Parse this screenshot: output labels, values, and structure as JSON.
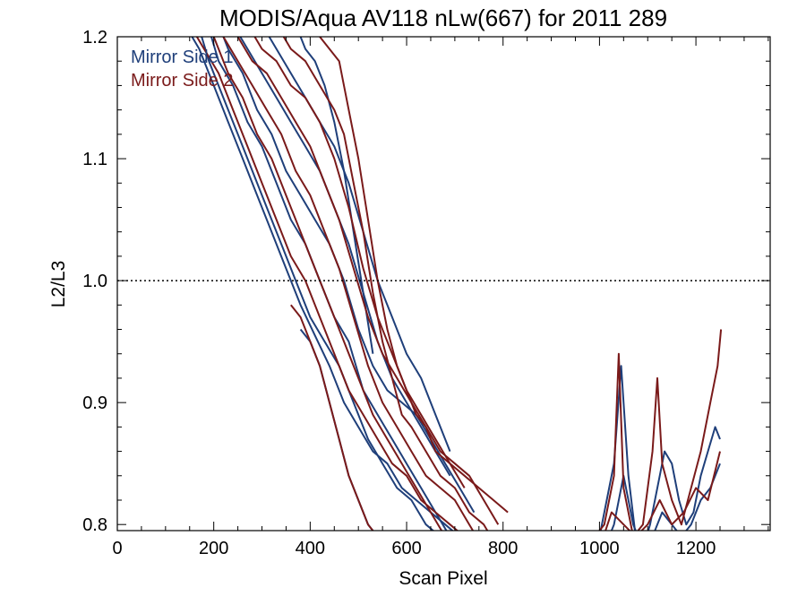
{
  "chart_data": {
    "type": "line",
    "title": "MODIS/Aqua AV118 nLw(667) for 2011 289",
    "xlabel": "Scan Pixel",
    "ylabel": "L2/L3",
    "xlim": [
      0,
      1354
    ],
    "ylim": [
      0.795,
      1.2
    ],
    "xticks": [
      0,
      200,
      400,
      600,
      800,
      1000,
      1200
    ],
    "xtick_labels": [
      "0",
      "200",
      "400",
      "600",
      "800",
      "1000",
      "1200"
    ],
    "yticks": [
      0.8,
      0.9,
      1.0,
      1.1,
      1.2
    ],
    "ytick_labels": [
      "0.8",
      "0.9",
      "1.0",
      "1.1",
      "1.2"
    ],
    "reference_line": {
      "y": 1.0,
      "style": "dotted"
    },
    "grid": false,
    "legend_position": "top-left",
    "colors": {
      "mirror_side_1": "#1f3f7a",
      "mirror_side_2": "#7a1a1a"
    },
    "series": [
      {
        "name": "Mirror Side 1",
        "color": "#1f3f7a",
        "x": [
          140,
          170,
          200,
          230,
          260,
          290,
          320,
          350,
          380,
          410,
          440,
          470,
          500,
          530,
          560,
          590,
          620,
          650,
          680,
          710,
          740,
          770,
          800,
          830
        ],
        "y": [
          1.21,
          1.19,
          1.16,
          1.13,
          1.1,
          1.07,
          1.04,
          1.01,
          0.98,
          0.955,
          0.93,
          0.9,
          0.88,
          0.86,
          0.85,
          0.83,
          0.82,
          0.81,
          0.8,
          0.79,
          0.78,
          0.77,
          0.76,
          0.75
        ]
      },
      {
        "name": "",
        "color": "#1f3f7a",
        "x": [
          160,
          190,
          220,
          250,
          280,
          310,
          340,
          370,
          400,
          430,
          460,
          490,
          520,
          550,
          580,
          610,
          640,
          670,
          700
        ],
        "y": [
          1.22,
          1.18,
          1.15,
          1.12,
          1.09,
          1.06,
          1.03,
          1.0,
          0.97,
          0.95,
          0.93,
          0.9,
          0.87,
          0.85,
          0.83,
          0.82,
          0.8,
          0.79,
          0.78
        ]
      },
      {
        "name": "",
        "color": "#1f3f7a",
        "x": [
          180,
          210,
          240,
          270,
          300,
          330,
          360,
          390,
          420,
          450,
          480,
          510,
          540,
          570,
          600,
          630,
          660,
          690
        ],
        "y": [
          1.22,
          1.18,
          1.16,
          1.13,
          1.11,
          1.08,
          1.05,
          1.03,
          1.0,
          0.97,
          0.95,
          0.91,
          0.89,
          0.87,
          0.85,
          0.83,
          0.81,
          0.79
        ]
      },
      {
        "name": "",
        "color": "#1f3f7a",
        "x": [
          200,
          230,
          260,
          290,
          320,
          350,
          380,
          410,
          440,
          470,
          500,
          530,
          560,
          590,
          620,
          650,
          680,
          710,
          740
        ],
        "y": [
          1.22,
          1.19,
          1.17,
          1.14,
          1.12,
          1.09,
          1.07,
          1.05,
          1.03,
          1.0,
          0.96,
          0.93,
          0.91,
          0.9,
          0.89,
          0.87,
          0.85,
          0.83,
          0.81
        ]
      },
      {
        "name": "",
        "color": "#1f3f7a",
        "x": [
          240,
          270,
          300,
          330,
          360,
          390,
          420,
          450,
          480,
          510,
          540,
          570,
          600,
          630,
          660,
          690
        ],
        "y": [
          1.21,
          1.19,
          1.17,
          1.15,
          1.13,
          1.11,
          1.09,
          1.06,
          1.03,
          0.99,
          0.95,
          0.92,
          0.9,
          0.88,
          0.86,
          0.84
        ]
      },
      {
        "name": "",
        "color": "#1f3f7a",
        "x": [
          300,
          330,
          360,
          390,
          420,
          450,
          480,
          510,
          540,
          570,
          600,
          630,
          660,
          690
        ],
        "y": [
          1.21,
          1.19,
          1.17,
          1.15,
          1.13,
          1.11,
          1.08,
          1.04,
          1.0,
          0.97,
          0.94,
          0.92,
          0.89,
          0.86
        ]
      },
      {
        "name": "",
        "color": "#1f3f7a",
        "x": [
          370,
          390,
          410,
          430,
          450,
          470,
          490,
          510,
          530
        ],
        "y": [
          1.21,
          1.19,
          1.18,
          1.16,
          1.13,
          1.09,
          1.04,
          0.99,
          0.94
        ]
      },
      {
        "name": "",
        "color": "#1f3f7a",
        "x": [
          380,
          400,
          420,
          440,
          460,
          480,
          500,
          520,
          540,
          560,
          580,
          600
        ],
        "y": [
          0.96,
          0.95,
          0.93,
          0.9,
          0.87,
          0.84,
          0.82,
          0.8,
          0.79,
          0.78,
          0.77,
          0.76
        ]
      },
      {
        "name": "",
        "color": "#1f3f7a",
        "x": [
          1000,
          1015,
          1030,
          1045,
          1060,
          1075,
          1090,
          1105,
          1120,
          1135,
          1150,
          1165,
          1180,
          1195,
          1210,
          1225,
          1240,
          1250
        ],
        "y": [
          0.79,
          0.82,
          0.85,
          0.93,
          0.84,
          0.79,
          0.78,
          0.8,
          0.83,
          0.86,
          0.85,
          0.82,
          0.8,
          0.81,
          0.84,
          0.86,
          0.88,
          0.87
        ]
      },
      {
        "name": "",
        "color": "#1f3f7a",
        "x": [
          1010,
          1030,
          1050,
          1070,
          1090,
          1110,
          1130,
          1150,
          1170,
          1190,
          1210,
          1230,
          1250
        ],
        "y": [
          0.78,
          0.8,
          0.84,
          0.8,
          0.78,
          0.79,
          0.81,
          0.8,
          0.79,
          0.8,
          0.82,
          0.83,
          0.85
        ]
      },
      {
        "name": "Mirror Side 2",
        "color": "#7a1a1a",
        "x": [
          150,
          180,
          210,
          240,
          270,
          300,
          330,
          360,
          390,
          420,
          450,
          480,
          510,
          540,
          570,
          600,
          630,
          660,
          690,
          720,
          750
        ],
        "y": [
          1.21,
          1.19,
          1.17,
          1.14,
          1.11,
          1.08,
          1.05,
          1.02,
          1.0,
          0.97,
          0.94,
          0.91,
          0.89,
          0.87,
          0.85,
          0.84,
          0.82,
          0.81,
          0.8,
          0.79,
          0.78
        ]
      },
      {
        "name": "",
        "color": "#7a1a1a",
        "x": [
          170,
          200,
          230,
          260,
          290,
          320,
          350,
          380,
          410,
          440,
          470,
          500,
          530,
          560,
          590,
          620,
          650,
          680
        ],
        "y": [
          1.22,
          1.2,
          1.17,
          1.15,
          1.12,
          1.1,
          1.07,
          1.04,
          1.01,
          0.98,
          0.95,
          0.92,
          0.89,
          0.87,
          0.85,
          0.83,
          0.81,
          0.79
        ]
      },
      {
        "name": "",
        "color": "#7a1a1a",
        "x": [
          190,
          220,
          250,
          280,
          310,
          340,
          370,
          400,
          430,
          460,
          490,
          520,
          550,
          580,
          610,
          640,
          670,
          700,
          730,
          760
        ],
        "y": [
          1.22,
          1.2,
          1.18,
          1.16,
          1.14,
          1.12,
          1.09,
          1.07,
          1.04,
          1.01,
          0.97,
          0.93,
          0.9,
          0.88,
          0.86,
          0.84,
          0.83,
          0.82,
          0.8,
          0.78
        ]
      },
      {
        "name": "",
        "color": "#7a1a1a",
        "x": [
          220,
          250,
          280,
          310,
          340,
          370,
          400,
          430,
          460,
          490,
          520,
          550,
          580,
          610,
          640,
          670,
          700,
          730,
          760,
          790
        ],
        "y": [
          1.22,
          1.2,
          1.18,
          1.17,
          1.15,
          1.13,
          1.11,
          1.08,
          1.05,
          1.01,
          0.97,
          0.94,
          0.92,
          0.9,
          0.88,
          0.86,
          0.85,
          0.84,
          0.82,
          0.8
        ]
      },
      {
        "name": "",
        "color": "#7a1a1a",
        "x": [
          270,
          300,
          330,
          360,
          390,
          420,
          450,
          480,
          510,
          540,
          570,
          600,
          630,
          660,
          690,
          720
        ],
        "y": [
          1.21,
          1.19,
          1.18,
          1.16,
          1.15,
          1.13,
          1.1,
          1.06,
          1.01,
          0.97,
          0.94,
          0.91,
          0.89,
          0.87,
          0.85,
          0.83
        ]
      },
      {
        "name": "",
        "color": "#7a1a1a",
        "x": [
          330,
          360,
          390,
          420,
          450,
          470,
          490,
          510,
          530,
          550,
          570,
          590,
          610,
          640,
          670,
          700,
          730,
          760,
          790
        ],
        "y": [
          1.21,
          1.19,
          1.18,
          1.16,
          1.14,
          1.12,
          1.08,
          1.04,
          0.99,
          0.95,
          0.92,
          0.89,
          0.88,
          0.86,
          0.84,
          0.83,
          0.81,
          0.8,
          0.78
        ]
      },
      {
        "name": "",
        "color": "#7a1a1a",
        "x": [
          400,
          420,
          440,
          460,
          480,
          500,
          520,
          540,
          560,
          580,
          600,
          620,
          640,
          660,
          690,
          720,
          750,
          780,
          810
        ],
        "y": [
          1.22,
          1.2,
          1.19,
          1.18,
          1.14,
          1.1,
          1.05,
          1.0,
          0.96,
          0.93,
          0.91,
          0.89,
          0.88,
          0.86,
          0.85,
          0.84,
          0.83,
          0.82,
          0.81
        ]
      },
      {
        "name": "",
        "color": "#7a1a1a",
        "x": [
          360,
          380,
          400,
          420,
          440,
          460,
          480,
          500,
          520,
          540,
          560,
          580
        ],
        "y": [
          0.98,
          0.97,
          0.95,
          0.93,
          0.9,
          0.87,
          0.84,
          0.82,
          0.8,
          0.79,
          0.78,
          0.77
        ]
      },
      {
        "name": "",
        "color": "#7a1a1a",
        "x": [
          990,
          1010,
          1030,
          1040,
          1050,
          1070,
          1090,
          1110,
          1120,
          1130,
          1150,
          1170,
          1190,
          1210,
          1230,
          1245,
          1252
        ],
        "y": [
          0.79,
          0.8,
          0.84,
          0.94,
          0.83,
          0.79,
          0.8,
          0.86,
          0.92,
          0.85,
          0.82,
          0.8,
          0.83,
          0.86,
          0.9,
          0.93,
          0.96
        ]
      },
      {
        "name": "",
        "color": "#7a1a1a",
        "x": [
          1000,
          1025,
          1050,
          1075,
          1100,
          1125,
          1150,
          1175,
          1200,
          1225,
          1250
        ],
        "y": [
          0.78,
          0.81,
          0.8,
          0.79,
          0.8,
          0.82,
          0.8,
          0.81,
          0.83,
          0.82,
          0.86
        ]
      }
    ]
  },
  "legend": [
    {
      "label": "Mirror Side 1",
      "color": "#1f3f7a"
    },
    {
      "label": "Mirror Side 2",
      "color": "#7a1a1a"
    }
  ]
}
